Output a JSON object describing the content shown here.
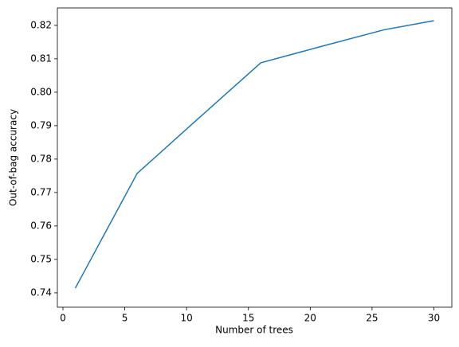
{
  "chart_data": {
    "type": "line",
    "x_label": "Number of trees",
    "y_label": "Out-of-bag accuracy",
    "series": [
      {
        "color": "#1f77b4",
        "x": [
          1,
          6,
          11,
          16,
          21,
          26,
          30
        ],
        "values": [
          0.7414,
          0.7757,
          0.7923,
          0.8088,
          0.8138,
          0.8187,
          0.8214
        ]
      }
    ],
    "xlim": [
      -0.45,
      31.45
    ],
    "xticks": [
      0,
      5,
      10,
      15,
      20,
      25,
      30
    ],
    "ylim": [
      0.7357,
      0.8252
    ],
    "yticks": [
      {
        "value": 0.74,
        "label": "0.74"
      },
      {
        "value": 0.75,
        "label": "0.75"
      },
      {
        "value": 0.76,
        "label": "0.76"
      },
      {
        "value": 0.77,
        "label": "0.77"
      },
      {
        "value": 0.78,
        "label": "0.78"
      },
      {
        "value": 0.79,
        "label": "0.79"
      },
      {
        "value": 0.8,
        "label": "0.80"
      },
      {
        "value": 0.81,
        "label": "0.81"
      },
      {
        "value": 0.82,
        "label": "0.82"
      }
    ]
  }
}
